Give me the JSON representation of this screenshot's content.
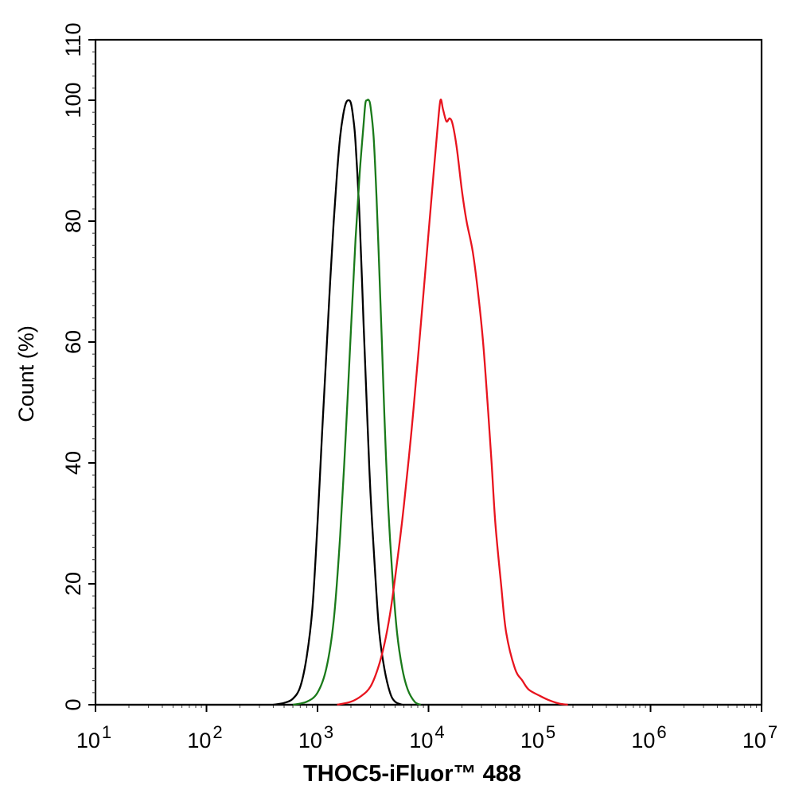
{
  "chart_data": {
    "type": "line",
    "title": "",
    "xlabel": "THOC5-iFluor™ 488",
    "ylabel": "Count  (%)",
    "x_scale": "log10",
    "xlim": [
      10,
      10000000
    ],
    "ylim": [
      0,
      110
    ],
    "x_ticks": [
      {
        "base": "10",
        "exp": "1"
      },
      {
        "base": "10",
        "exp": "2"
      },
      {
        "base": "10",
        "exp": "3"
      },
      {
        "base": "10",
        "exp": "4"
      },
      {
        "base": "10",
        "exp": "5"
      },
      {
        "base": "10",
        "exp": "6"
      },
      {
        "base": "10",
        "exp": "7"
      }
    ],
    "y_ticks": [
      "0",
      "20",
      "40",
      "60",
      "80",
      "100",
      "110"
    ],
    "y_tick_values": [
      0,
      20,
      40,
      60,
      80,
      100,
      110
    ],
    "grid": false,
    "legend": "none",
    "series": [
      {
        "color": "#000000",
        "points": [
          [
            400,
            0
          ],
          [
            500,
            0.3
          ],
          [
            600,
            1
          ],
          [
            700,
            3
          ],
          [
            800,
            8
          ],
          [
            900,
            16
          ],
          [
            1000,
            30
          ],
          [
            1100,
            45
          ],
          [
            1200,
            58
          ],
          [
            1300,
            70
          ],
          [
            1400,
            80
          ],
          [
            1500,
            88
          ],
          [
            1600,
            94
          ],
          [
            1700,
            97.5
          ],
          [
            1800,
            99.5
          ],
          [
            1900,
            100
          ],
          [
            2000,
            99.5
          ],
          [
            2100,
            97
          ],
          [
            2200,
            93
          ],
          [
            2400,
            80
          ],
          [
            2600,
            63
          ],
          [
            2800,
            48
          ],
          [
            3000,
            35
          ],
          [
            3300,
            22
          ],
          [
            3600,
            12
          ],
          [
            4000,
            6
          ],
          [
            4500,
            2
          ],
          [
            5000,
            0.5
          ],
          [
            5800,
            0
          ]
        ]
      },
      {
        "color": "#1a7a1a",
        "points": [
          [
            600,
            0
          ],
          [
            800,
            0.5
          ],
          [
            1000,
            2
          ],
          [
            1200,
            6
          ],
          [
            1400,
            14
          ],
          [
            1600,
            28
          ],
          [
            1800,
            45
          ],
          [
            2000,
            62
          ],
          [
            2200,
            77
          ],
          [
            2400,
            88
          ],
          [
            2600,
            96
          ],
          [
            2700,
            99.5
          ],
          [
            2800,
            100
          ],
          [
            2900,
            100
          ],
          [
            3000,
            99
          ],
          [
            3200,
            94
          ],
          [
            3400,
            84
          ],
          [
            3600,
            72
          ],
          [
            3800,
            60
          ],
          [
            4000,
            48
          ],
          [
            4300,
            34
          ],
          [
            4700,
            22
          ],
          [
            5200,
            12
          ],
          [
            5800,
            6
          ],
          [
            6500,
            2.5
          ],
          [
            7500,
            0.5
          ],
          [
            8500,
            0
          ]
        ]
      },
      {
        "color": "#e8141e",
        "points": [
          [
            1500,
            0
          ],
          [
            2000,
            0.5
          ],
          [
            2500,
            1.5
          ],
          [
            3000,
            3
          ],
          [
            3500,
            6
          ],
          [
            4000,
            10
          ],
          [
            4500,
            15
          ],
          [
            5000,
            21
          ],
          [
            5500,
            27
          ],
          [
            6000,
            33
          ],
          [
            7000,
            45
          ],
          [
            8000,
            57
          ],
          [
            9000,
            68
          ],
          [
            10000,
            78
          ],
          [
            11000,
            87
          ],
          [
            12000,
            95
          ],
          [
            12800,
            100
          ],
          [
            13500,
            98.5
          ],
          [
            14500,
            96.5
          ],
          [
            15500,
            97
          ],
          [
            16500,
            96
          ],
          [
            18000,
            92
          ],
          [
            20000,
            85
          ],
          [
            22000,
            80
          ],
          [
            25000,
            75
          ],
          [
            28000,
            68
          ],
          [
            31000,
            60
          ],
          [
            34000,
            50
          ],
          [
            37000,
            40
          ],
          [
            40000,
            30
          ],
          [
            45000,
            20
          ],
          [
            50000,
            12
          ],
          [
            60000,
            6
          ],
          [
            70000,
            4
          ],
          [
            80000,
            2.5
          ],
          [
            100000,
            1.5
          ],
          [
            120000,
            0.8
          ],
          [
            150000,
            0.2
          ],
          [
            180000,
            0
          ]
        ]
      }
    ]
  }
}
